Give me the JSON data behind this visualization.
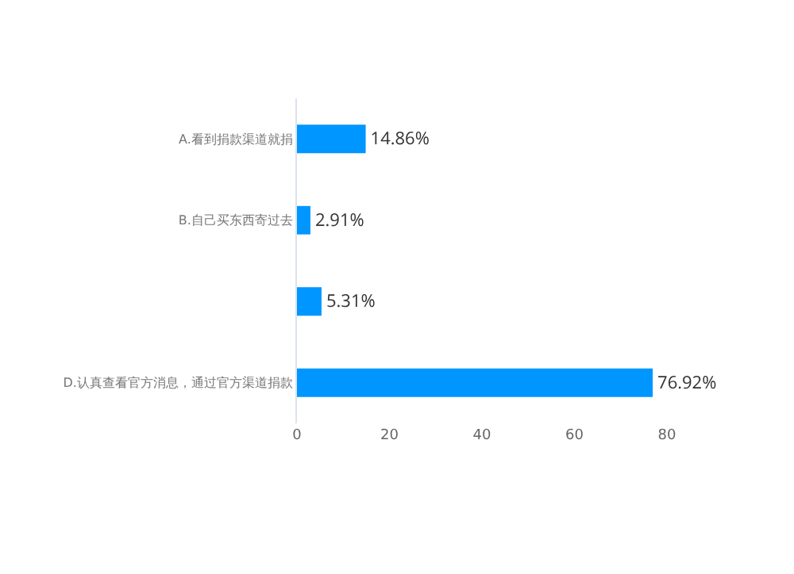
{
  "chart_data": {
    "type": "bar",
    "orientation": "horizontal",
    "categories": [
      "A.看到捐款渠道就捐",
      "B.自己买东西寄过去",
      null,
      "D.认真查看官方消息，通过官方渠道捐款"
    ],
    "values": [
      14.86,
      2.91,
      5.31,
      76.92
    ],
    "value_labels": [
      "14.86%",
      "2.91%",
      "5.31%",
      "76.92%"
    ],
    "color": "#0096ff",
    "xlim": [
      0,
      80
    ],
    "xticks": [
      0,
      20,
      40,
      60,
      80
    ],
    "grid": false
  }
}
